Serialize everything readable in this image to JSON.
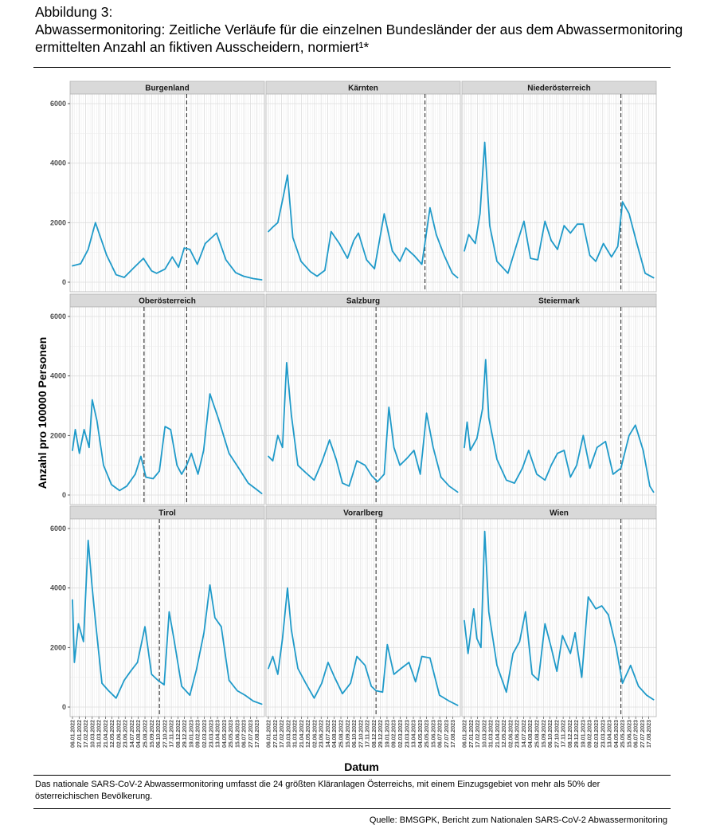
{
  "figure": {
    "number": "Abbildung 3:",
    "title": "Abwassermonitoring: Zeitliche Verläufe für die einzelnen Bundesländer der aus dem Abwassermonitoring ermittelten Anzahl an fiktiven Ausscheidern, normiert¹*",
    "note": "Das nationale SARS-CoV-2 Abwassermonitoring umfasst die 24 größten Kläranlagen Österreichs, mit einem Einzugsgebiet von mehr als 50% der österreichischen Bevölkerung.",
    "source": "Quelle: BMSGPK, Bericht zum Nationalen SARS-CoV-2 Abwassermonitoring"
  },
  "colors": {
    "line": "#1f9ac9",
    "strip": "#d9d9d9",
    "panel_border": "#b3b3b3",
    "grid": "#ebebeb",
    "vline": "#333333"
  },
  "chart_data": {
    "type": "line",
    "layout": "facet-grid 3x3",
    "xlabel": "Datum",
    "ylabel": "Anzahl pro 100000 Personen",
    "ylim": [
      0,
      6000
    ],
    "yticks": [
      0,
      2000,
      4000,
      6000
    ],
    "xlim": [
      "2022-01-06",
      "2023-09-02"
    ],
    "xticks": [
      "06.01.2022",
      "27.01.2022",
      "17.02.2022",
      "10.03.2022",
      "31.03.2022",
      "21.04.2022",
      "12.05.2022",
      "02.06.2022",
      "23.06.2022",
      "14.07.2022",
      "04.08.2022",
      "25.08.2022",
      "15.09.2022",
      "06.10.2022",
      "27.10.2022",
      "17.11.2022",
      "08.12.2022",
      "29.12.2022",
      "19.01.2023",
      "09.02.2023",
      "02.03.2023",
      "23.03.2023",
      "13.04.2023",
      "04.05.2023",
      "25.05.2023",
      "15.06.2023",
      "06.07.2023",
      "27.07.2023",
      "17.08.2023"
    ],
    "panels": [
      {
        "name": "Burgenland",
        "vlines": [
          "2023-01-05"
        ],
        "dates": [
          "2022-01-06",
          "2022-02-01",
          "2022-02-25",
          "2022-03-20",
          "2022-04-25",
          "2022-05-25",
          "2022-06-20",
          "2022-07-20",
          "2022-08-20",
          "2022-09-15",
          "2022-10-01",
          "2022-10-28",
          "2022-11-20",
          "2022-12-10",
          "2022-12-28",
          "2023-01-15",
          "2023-02-08",
          "2023-03-05",
          "2023-04-10",
          "2023-05-10",
          "2023-06-10",
          "2023-07-05",
          "2023-08-05",
          "2023-09-01"
        ],
        "values": [
          550,
          620,
          1100,
          2000,
          900,
          250,
          160,
          480,
          800,
          380,
          300,
          440,
          850,
          500,
          1150,
          1100,
          600,
          1300,
          1650,
          750,
          320,
          200,
          120,
          80
        ]
      },
      {
        "name": "Kärnten",
        "vlines": [
          "2023-05-20"
        ],
        "dates": [
          "2022-01-06",
          "2022-01-20",
          "2022-02-05",
          "2022-02-22",
          "2022-03-08",
          "2022-03-25",
          "2022-04-20",
          "2022-05-20",
          "2022-06-10",
          "2022-07-05",
          "2022-07-25",
          "2022-08-20",
          "2022-09-15",
          "2022-10-05",
          "2022-10-20",
          "2022-11-15",
          "2022-12-10",
          "2023-01-10",
          "2023-02-05",
          "2023-03-01",
          "2023-03-20",
          "2023-04-15",
          "2023-05-10",
          "2023-06-05",
          "2023-06-25",
          "2023-07-20",
          "2023-08-15",
          "2023-09-01"
        ],
        "values": [
          1700,
          1850,
          2000,
          2850,
          3600,
          1500,
          700,
          350,
          200,
          400,
          1700,
          1300,
          800,
          1400,
          1650,
          750,
          450,
          2300,
          1050,
          700,
          1150,
          900,
          600,
          2500,
          1600,
          900,
          300,
          150
        ]
      },
      {
        "name": "Niederösterreich",
        "vlines": [
          "2023-05-20"
        ],
        "dates": [
          "2022-01-06",
          "2022-01-20",
          "2022-02-10",
          "2022-02-25",
          "2022-03-12",
          "2022-03-28",
          "2022-04-20",
          "2022-05-25",
          "2022-06-20",
          "2022-07-15",
          "2022-08-05",
          "2022-08-28",
          "2022-09-20",
          "2022-10-10",
          "2022-10-30",
          "2022-11-20",
          "2022-12-10",
          "2023-01-01",
          "2023-01-20",
          "2023-02-10",
          "2023-03-01",
          "2023-03-25",
          "2023-04-20",
          "2023-05-10",
          "2023-05-25",
          "2023-06-15",
          "2023-07-10",
          "2023-08-05",
          "2023-09-01"
        ],
        "values": [
          1050,
          1600,
          1300,
          2300,
          4700,
          1900,
          700,
          300,
          1200,
          2050,
          800,
          750,
          2050,
          1400,
          1100,
          1900,
          1650,
          1950,
          1950,
          900,
          700,
          1300,
          850,
          1200,
          2700,
          2300,
          1300,
          300,
          150
        ]
      },
      {
        "name": "Oberösterreich",
        "vlines": [
          "2022-08-22",
          "2023-01-05"
        ],
        "dates": [
          "2022-01-06",
          "2022-01-15",
          "2022-01-28",
          "2022-02-12",
          "2022-02-28",
          "2022-03-10",
          "2022-03-25",
          "2022-04-15",
          "2022-05-10",
          "2022-06-05",
          "2022-06-28",
          "2022-07-25",
          "2022-08-12",
          "2022-08-28",
          "2022-09-20",
          "2022-10-10",
          "2022-10-28",
          "2022-11-15",
          "2022-12-05",
          "2022-12-20",
          "2023-01-05",
          "2023-01-20",
          "2023-02-10",
          "2023-02-28",
          "2023-03-20",
          "2023-04-15",
          "2023-05-20",
          "2023-06-20",
          "2023-07-20",
          "2023-08-20",
          "2023-09-01"
        ],
        "values": [
          1500,
          2200,
          1400,
          2200,
          1600,
          3200,
          2500,
          1000,
          350,
          150,
          300,
          700,
          1300,
          600,
          550,
          800,
          2300,
          2200,
          1000,
          700,
          1000,
          1400,
          700,
          1500,
          3400,
          2600,
          1400,
          900,
          400,
          150,
          50
        ]
      },
      {
        "name": "Salzburg",
        "vlines": [
          "2022-12-15"
        ],
        "dates": [
          "2022-01-06",
          "2022-01-20",
          "2022-02-05",
          "2022-02-20",
          "2022-03-05",
          "2022-03-20",
          "2022-04-10",
          "2022-05-05",
          "2022-06-01",
          "2022-06-25",
          "2022-07-20",
          "2022-08-10",
          "2022-08-30",
          "2022-09-20",
          "2022-10-15",
          "2022-11-10",
          "2022-12-01",
          "2022-12-20",
          "2023-01-10",
          "2023-01-25",
          "2023-02-10",
          "2023-03-01",
          "2023-03-25",
          "2023-04-15",
          "2023-05-05",
          "2023-05-25",
          "2023-06-15",
          "2023-07-10",
          "2023-08-05",
          "2023-09-01"
        ],
        "values": [
          1300,
          1150,
          2000,
          1600,
          4450,
          2700,
          1000,
          750,
          500,
          1100,
          1850,
          1200,
          400,
          300,
          1150,
          1000,
          650,
          450,
          700,
          2950,
          1600,
          1000,
          1250,
          1500,
          700,
          2750,
          1600,
          600,
          300,
          100
        ]
      },
      {
        "name": "Steiermark",
        "vlines": [
          "2023-05-20"
        ],
        "dates": [
          "2022-01-06",
          "2022-01-15",
          "2022-01-25",
          "2022-02-15",
          "2022-03-05",
          "2022-03-15",
          "2022-03-25",
          "2022-04-20",
          "2022-05-20",
          "2022-06-15",
          "2022-07-10",
          "2022-07-30",
          "2022-08-25",
          "2022-09-20",
          "2022-10-10",
          "2022-10-30",
          "2022-11-20",
          "2022-12-10",
          "2022-12-30",
          "2023-01-20",
          "2023-02-10",
          "2023-03-05",
          "2023-04-01",
          "2023-04-25",
          "2023-05-20",
          "2023-06-15",
          "2023-07-05",
          "2023-07-30",
          "2023-08-20",
          "2023-09-01"
        ],
        "values": [
          1600,
          2450,
          1500,
          1900,
          2900,
          4550,
          2600,
          1200,
          500,
          400,
          900,
          1500,
          700,
          500,
          1000,
          1400,
          1500,
          600,
          1000,
          2000,
          900,
          1600,
          1800,
          700,
          900,
          2000,
          2350,
          1500,
          300,
          100
        ]
      },
      {
        "name": "Tirol",
        "vlines": [
          "2022-10-10"
        ],
        "dates": [
          "2022-01-06",
          "2022-01-12",
          "2022-01-25",
          "2022-02-10",
          "2022-02-25",
          "2022-03-10",
          "2022-03-20",
          "2022-04-10",
          "2022-05-01",
          "2022-05-25",
          "2022-06-20",
          "2022-07-10",
          "2022-08-01",
          "2022-08-25",
          "2022-09-15",
          "2022-10-05",
          "2022-10-25",
          "2022-11-10",
          "2022-11-25",
          "2022-12-20",
          "2023-01-15",
          "2023-02-05",
          "2023-03-01",
          "2023-03-20",
          "2023-04-05",
          "2023-04-25",
          "2023-05-20",
          "2023-06-15",
          "2023-07-10",
          "2023-08-05",
          "2023-09-01"
        ],
        "values": [
          3600,
          1500,
          2800,
          2200,
          5600,
          4000,
          2900,
          800,
          550,
          300,
          900,
          1200,
          1500,
          2700,
          1100,
          900,
          750,
          3200,
          2300,
          700,
          400,
          1250,
          2500,
          4100,
          3000,
          2700,
          900,
          550,
          400,
          200,
          100
        ]
      },
      {
        "name": "Vorarlberg",
        "vlines": [
          "2022-12-15"
        ],
        "dates": [
          "2022-01-06",
          "2022-01-20",
          "2022-02-05",
          "2022-02-20",
          "2022-03-08",
          "2022-03-20",
          "2022-04-10",
          "2022-05-05",
          "2022-06-01",
          "2022-06-25",
          "2022-07-15",
          "2022-08-05",
          "2022-08-30",
          "2022-09-25",
          "2022-10-15",
          "2022-11-10",
          "2022-11-30",
          "2022-12-15",
          "2023-01-05",
          "2023-01-20",
          "2023-02-10",
          "2023-03-05",
          "2023-03-30",
          "2023-04-20",
          "2023-05-10",
          "2023-06-05",
          "2023-07-05",
          "2023-08-05",
          "2023-09-01"
        ],
        "values": [
          1300,
          1700,
          1100,
          2300,
          4000,
          2600,
          1300,
          800,
          300,
          800,
          1500,
          1000,
          450,
          800,
          1700,
          1400,
          700,
          550,
          500,
          2100,
          1100,
          1300,
          1500,
          850,
          1700,
          1650,
          400,
          200,
          60
        ]
      },
      {
        "name": "Wien",
        "vlines": [
          "2023-05-20"
        ],
        "dates": [
          "2022-01-06",
          "2022-01-18",
          "2022-02-05",
          "2022-02-15",
          "2022-02-28",
          "2022-03-12",
          "2022-03-25",
          "2022-04-20",
          "2022-05-20",
          "2022-06-10",
          "2022-07-01",
          "2022-07-20",
          "2022-08-10",
          "2022-08-30",
          "2022-09-20",
          "2022-10-10",
          "2022-10-28",
          "2022-11-15",
          "2022-12-10",
          "2022-12-25",
          "2023-01-15",
          "2023-02-05",
          "2023-03-01",
          "2023-03-20",
          "2023-04-10",
          "2023-05-05",
          "2023-05-25",
          "2023-06-20",
          "2023-07-15",
          "2023-08-10",
          "2023-09-01"
        ],
        "values": [
          2900,
          1800,
          3300,
          2300,
          2000,
          5900,
          3200,
          1400,
          500,
          1800,
          2200,
          3200,
          1100,
          900,
          2800,
          2000,
          1200,
          2400,
          1800,
          2500,
          1000,
          3700,
          3300,
          3400,
          3100,
          2000,
          800,
          1400,
          700,
          400,
          250
        ]
      }
    ]
  }
}
